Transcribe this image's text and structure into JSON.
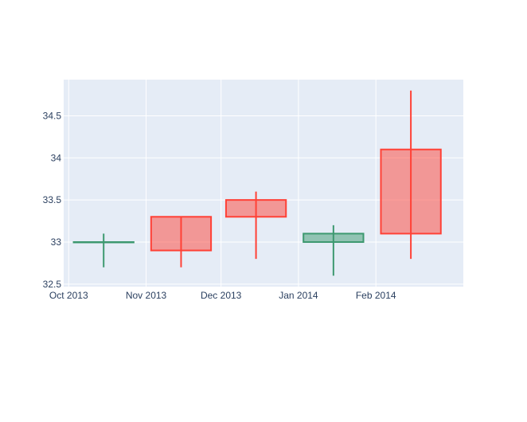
{
  "chart_data": {
    "type": "candlestick",
    "x": [
      "2013-10-15",
      "2013-11-15",
      "2013-12-15",
      "2014-01-15",
      "2014-02-15"
    ],
    "open": [
      33.0,
      33.3,
      33.5,
      33.0,
      34.1
    ],
    "high": [
      33.1,
      33.3,
      33.6,
      33.2,
      34.8
    ],
    "low": [
      32.7,
      32.7,
      32.8,
      32.6,
      32.8
    ],
    "close": [
      33.0,
      32.9,
      33.3,
      33.1,
      33.1
    ],
    "x_ticks": [
      {
        "date": "2013-10-01",
        "label": "Oct 2013"
      },
      {
        "date": "2013-11-01",
        "label": "Nov 2013"
      },
      {
        "date": "2013-12-01",
        "label": "Dec 2013"
      },
      {
        "date": "2014-01-01",
        "label": "Jan 2014"
      },
      {
        "date": "2014-02-01",
        "label": "Feb 2014"
      }
    ],
    "y_ticks": [
      {
        "value": 32.5,
        "label": "32.5"
      },
      {
        "value": 33.0,
        "label": "33"
      },
      {
        "value": 33.5,
        "label": "33.5"
      },
      {
        "value": 34.0,
        "label": "34"
      },
      {
        "value": 34.5,
        "label": "34.5"
      }
    ],
    "xlim": [
      "2013-09-29",
      "2014-03-08"
    ],
    "ylim": [
      32.47,
      34.93
    ],
    "grid": true,
    "legend": false,
    "colors": {
      "increasing": "#3d9970",
      "increasing_fill": "rgba(61,153,112,0.5)",
      "decreasing": "#ff4136",
      "decreasing_fill": "rgba(255,65,54,0.5)",
      "plot_bg": "#e5ecf6",
      "grid": "#ffffff",
      "text": "#2a3f5f"
    }
  }
}
